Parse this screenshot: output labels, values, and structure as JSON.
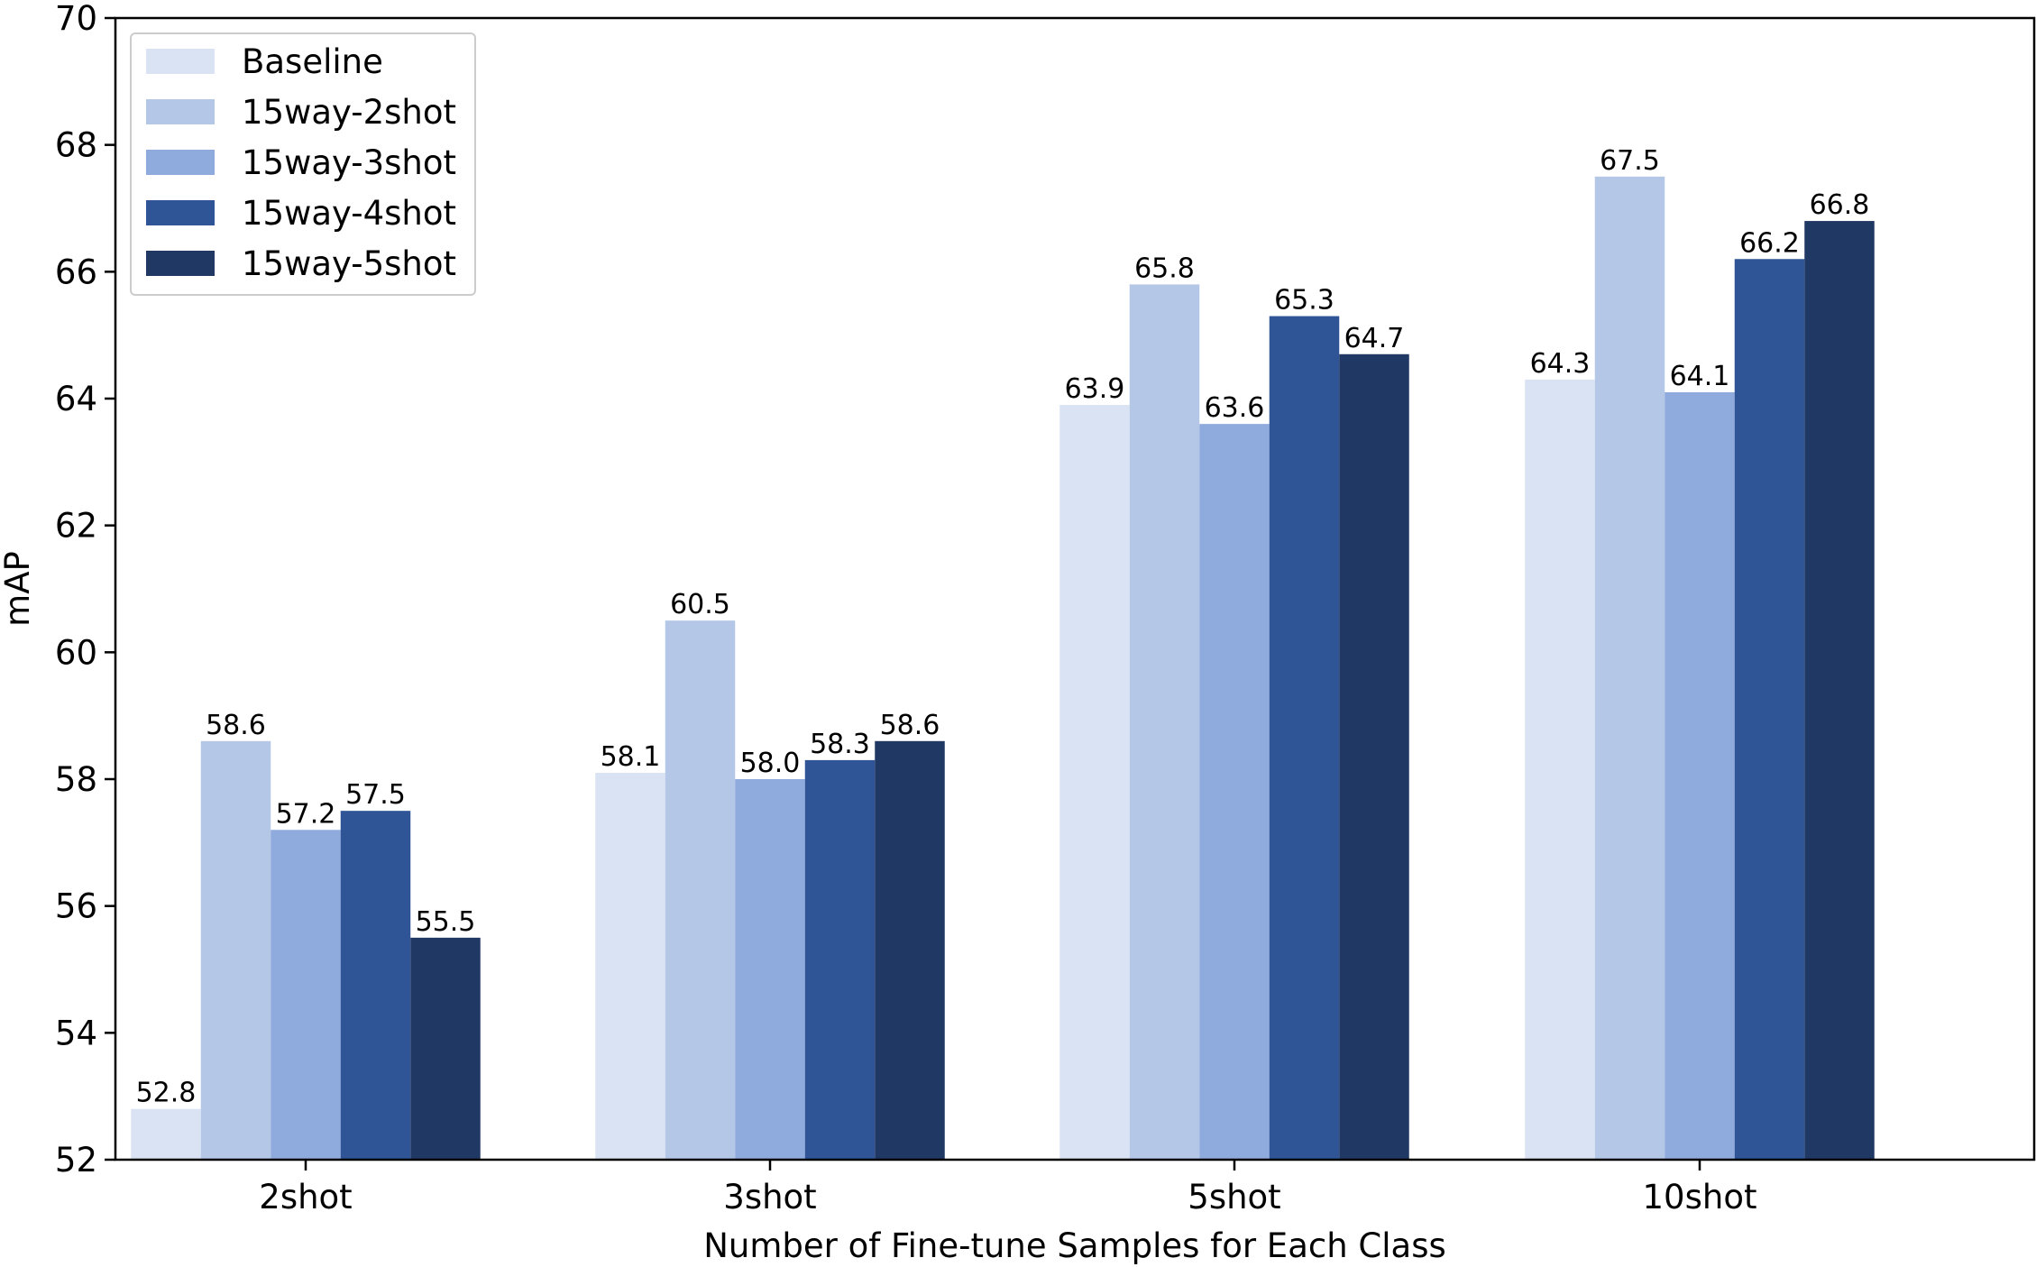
{
  "chart_data": {
    "type": "bar",
    "title": "",
    "xlabel": "Number of Fine-tune Samples for Each Class",
    "ylabel": "mAP",
    "categories": [
      "2shot",
      "3shot",
      "5shot",
      "10shot"
    ],
    "ylim": [
      52,
      70
    ],
    "yticks": [
      "52",
      "54",
      "56",
      "58",
      "60",
      "62",
      "64",
      "66",
      "68",
      "70"
    ],
    "grid": false,
    "legend_position": "top-left",
    "series": [
      {
        "name": "Baseline",
        "color": "#dae3f3",
        "values": [
          52.8,
          58.1,
          63.9,
          64.3
        ],
        "labels": [
          "52.8",
          "58.1",
          "63.9",
          "64.3"
        ]
      },
      {
        "name": "15way-2shot",
        "color": "#b4c7e7",
        "values": [
          58.6,
          60.5,
          65.8,
          67.5
        ],
        "labels": [
          "58.6",
          "60.5",
          "65.8",
          "67.5"
        ]
      },
      {
        "name": "15way-3shot",
        "color": "#8faadc",
        "values": [
          57.2,
          58.0,
          63.6,
          64.1
        ],
        "labels": [
          "57.2",
          "58.0",
          "63.6",
          "64.1"
        ]
      },
      {
        "name": "15way-4shot",
        "color": "#2f5597",
        "values": [
          57.5,
          58.3,
          65.3,
          66.2
        ],
        "labels": [
          "57.5",
          "58.3",
          "65.3",
          "66.2"
        ]
      },
      {
        "name": "15way-5shot",
        "color": "#203864",
        "values": [
          55.5,
          58.6,
          64.7,
          66.8
        ],
        "labels": [
          "55.5",
          "58.6",
          "64.7",
          "66.8"
        ]
      }
    ]
  }
}
